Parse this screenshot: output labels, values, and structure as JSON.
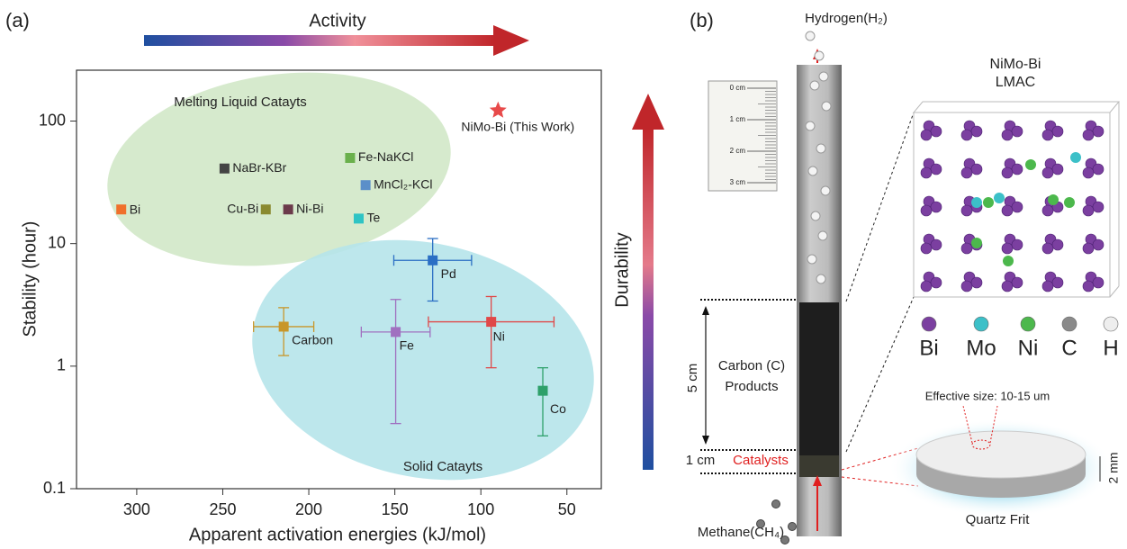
{
  "panel_labels": [
    "(a)",
    "(b)"
  ],
  "chart_data": {
    "type": "scatter",
    "x_label": "Apparent activation energies (kJ/mol)",
    "y_label": "Stability (hour)",
    "yscale": "log",
    "xlim": [
      335,
      30
    ],
    "ylim": [
      0.1,
      260
    ],
    "xticks": [
      300,
      250,
      200,
      150,
      100,
      50
    ],
    "yticks": [
      0.1,
      1,
      10,
      100
    ],
    "grid": false,
    "annotations": {
      "activity": "Activity",
      "durability": "Durability",
      "liquid_region": "Melting Liquid Catayts",
      "solid_region": "Solid Catayts"
    },
    "series": [
      {
        "name": "Bi",
        "color": "#f0702c",
        "marker": "square",
        "x": [
          309
        ],
        "values": [
          19
        ]
      },
      {
        "name": "NaBr-KBr",
        "color": "#444444",
        "marker": "square",
        "x": [
          249
        ],
        "values": [
          41
        ]
      },
      {
        "name": "Fe-NaKCl",
        "color": "#6ab04c",
        "marker": "square",
        "x": [
          176
        ],
        "values": [
          50
        ]
      },
      {
        "name": "MnCl₂-KCl",
        "color": "#5b8fc9",
        "marker": "square",
        "x": [
          167
        ],
        "values": [
          30
        ]
      },
      {
        "name": "Cu-Bi",
        "color": "#8a8a30",
        "marker": "square",
        "x": [
          225
        ],
        "values": [
          19
        ]
      },
      {
        "name": "Ni-Bi",
        "color": "#6b3a4a",
        "marker": "square",
        "x": [
          212
        ],
        "values": [
          19
        ]
      },
      {
        "name": "Te",
        "color": "#2ec4c4",
        "marker": "square",
        "x": [
          171
        ],
        "values": [
          16
        ]
      },
      {
        "name": "NiMo-Bi (This Work)",
        "color": "#e84a4a",
        "marker": "star",
        "x": [
          90
        ],
        "values": [
          122
        ]
      },
      {
        "name": "Pd",
        "color": "#2b6fc4",
        "marker": "square",
        "x": [
          128
        ],
        "values": [
          7.3
        ],
        "xerr": [
          22.6
        ],
        "y_lower": [
          3.4
        ],
        "y_upper": [
          11
        ]
      },
      {
        "name": "Carbon",
        "color": "#c8962a",
        "marker": "square",
        "x": [
          214.6
        ],
        "values": [
          2.1
        ],
        "xerr": [
          17.5
        ],
        "y_lower": [
          1.22
        ],
        "y_upper": [
          3.0
        ]
      },
      {
        "name": "Fe",
        "color": "#a070c0",
        "marker": "square",
        "x": [
          149.5
        ],
        "values": [
          1.9
        ],
        "xerr": [
          20
        ],
        "y_lower": [
          0.34
        ],
        "y_upper": [
          3.5
        ]
      },
      {
        "name": "Ni",
        "color": "#e04848",
        "marker": "square",
        "x": [
          94
        ],
        "values": [
          2.3
        ],
        "xerr": [
          36.5
        ],
        "y_lower": [
          0.97
        ],
        "y_upper": [
          3.7
        ]
      },
      {
        "name": "Co",
        "color": "#2ea06a",
        "marker": "square",
        "x": [
          64
        ],
        "values": [
          0.63
        ],
        "y_lower": [
          0.27
        ],
        "y_upper": [
          0.97
        ]
      }
    ]
  },
  "photo": {
    "top_gas": "Hydrogen(H₂)",
    "bottom_gas": "Methane(CH₄)",
    "ruler": [
      "0 cm",
      "1 cm",
      "2 cm",
      "3 cm"
    ],
    "structure_title": [
      "NiMo-Bi",
      "LMAC"
    ],
    "atoms": [
      {
        "label": "Bi",
        "color": "#7b3fa0"
      },
      {
        "label": "Mo",
        "color": "#3cc0c8"
      },
      {
        "label": "Ni",
        "color": "#4cb84c"
      },
      {
        "label": "C",
        "color": "#8a8a8a"
      },
      {
        "label": "H",
        "color": "#eeeeee"
      }
    ],
    "products_length": "5 cm",
    "products_label": [
      "Carbon (C)",
      "Products"
    ],
    "catalyst_length": "1 cm",
    "catalyst_label": "Catalysts",
    "frit_pore": "Effective size: 10-15 um",
    "frit_thickness": "2 mm",
    "frit_label": "Quartz Frit"
  }
}
